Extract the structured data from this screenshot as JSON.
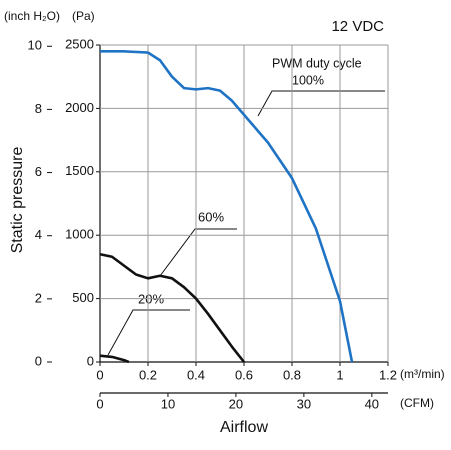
{
  "chart_data": {
    "type": "line",
    "title": "12 VDC",
    "y_label": "Static pressure",
    "y_unit": "(Pa)",
    "y2_unit": "(inch H₂O)",
    "x_label": "Airflow",
    "x_unit": "(m³/min)",
    "x2_unit": "(CFM)",
    "annotation_line1": "PWM duty cycle",
    "xlim": [
      0,
      1.2
    ],
    "xticks": [
      0,
      0.2,
      0.4,
      0.6,
      0.8,
      1.0,
      1.2
    ],
    "x2lim": [
      0,
      42.38
    ],
    "x2ticks": [
      0,
      10,
      20,
      30,
      40
    ],
    "ylim": [
      0,
      2500
    ],
    "yticks": [
      0,
      500,
      1000,
      1500,
      2000,
      2500
    ],
    "y2lim": [
      0,
      10.04
    ],
    "y2ticks": [
      0,
      2,
      4,
      6,
      8,
      10
    ],
    "grid": true,
    "series": [
      {
        "name": "100%",
        "color": "#1f73c4",
        "x": [
          0,
          0.1,
          0.2,
          0.25,
          0.3,
          0.35,
          0.4,
          0.45,
          0.5,
          0.55,
          0.6,
          0.7,
          0.8,
          0.9,
          1.0,
          1.05
        ],
        "values": [
          2450,
          2450,
          2440,
          2380,
          2250,
          2160,
          2150,
          2160,
          2140,
          2060,
          1950,
          1730,
          1450,
          1050,
          480,
          0
        ]
      },
      {
        "name": "60%",
        "color": "#111111",
        "x": [
          0,
          0.05,
          0.1,
          0.15,
          0.2,
          0.25,
          0.3,
          0.35,
          0.4,
          0.45,
          0.5,
          0.55,
          0.6
        ],
        "values": [
          850,
          830,
          760,
          690,
          660,
          680,
          660,
          590,
          500,
          380,
          250,
          120,
          0
        ]
      },
      {
        "name": "20%",
        "color": "#111111",
        "x": [
          0,
          0.05,
          0.1,
          0.12
        ],
        "values": [
          50,
          40,
          15,
          0
        ]
      }
    ]
  }
}
